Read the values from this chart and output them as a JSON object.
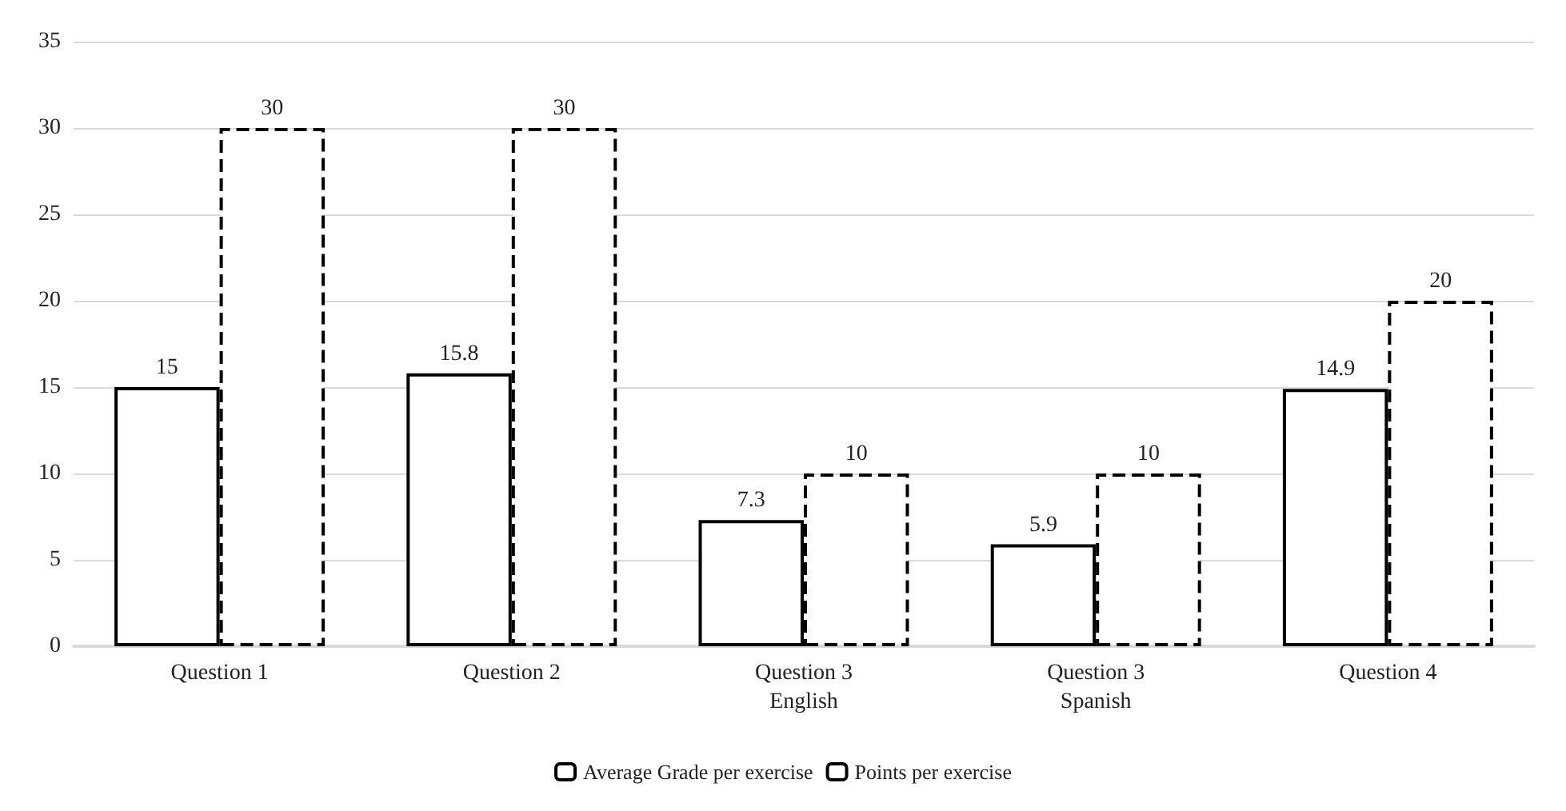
{
  "chart_data": {
    "type": "bar",
    "categories": [
      "Question 1",
      "Question 2",
      "Question 3\nEnglish",
      "Question 3\nSpanish",
      "Question 4"
    ],
    "series": [
      {
        "name": "Average Grade per exercise",
        "color": "#000000",
        "line_style": "solid",
        "values": [
          15,
          15.8,
          7.3,
          5.9,
          14.9
        ]
      },
      {
        "name": "Points per exercise",
        "color": "#000000",
        "line_style": "dashed",
        "values": [
          30,
          30,
          10,
          10,
          20
        ]
      }
    ],
    "ylim": [
      0,
      35
    ],
    "yticks": [
      0,
      5,
      10,
      15,
      20,
      25,
      30,
      35
    ],
    "grid": "y",
    "legend": "bottom",
    "data_labels": true
  }
}
